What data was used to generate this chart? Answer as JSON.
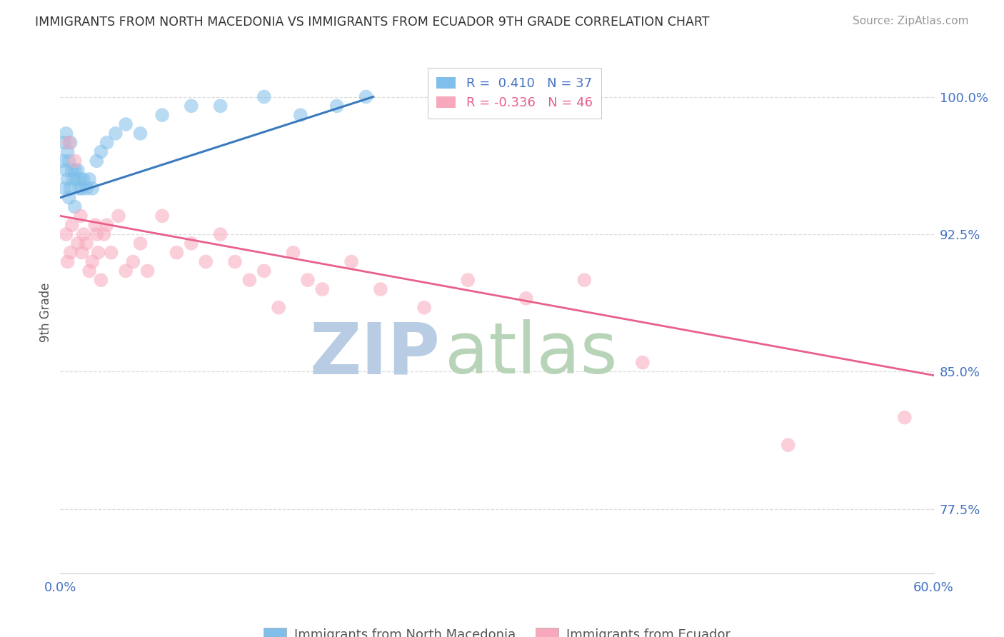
{
  "title": "IMMIGRANTS FROM NORTH MACEDONIA VS IMMIGRANTS FROM ECUADOR 9TH GRADE CORRELATION CHART",
  "source": "Source: ZipAtlas.com",
  "ylabel": "9th Grade",
  "yticks": [
    77.5,
    85.0,
    92.5,
    100.0
  ],
  "ytick_labels": [
    "77.5%",
    "85.0%",
    "92.5%",
    "100.0%"
  ],
  "xlim": [
    0.0,
    60.0
  ],
  "ylim": [
    74.0,
    102.5
  ],
  "color_blue": "#7fbfea",
  "color_pink": "#f8a8bc",
  "color_blue_line": "#3a7abd",
  "color_pink_line": "#e8608a",
  "color_blue_text": "#4472c4",
  "watermark_zip": "ZIP",
  "watermark_atlas": "atlas",
  "watermark_color_zip": "#b8cfe0",
  "watermark_color_atlas": "#c0d8c0",
  "label1": "Immigrants from North Macedonia",
  "label2": "Immigrants from Ecuador",
  "legend_text1": "R =  0.410   N = 37",
  "legend_text2": "R = -0.336   N = 46",
  "north_macedonia_x": [
    0.2,
    0.3,
    0.3,
    0.4,
    0.4,
    0.5,
    0.5,
    0.6,
    0.6,
    0.7,
    0.7,
    0.8,
    0.9,
    1.0,
    1.0,
    1.1,
    1.2,
    1.3,
    1.4,
    1.5,
    1.6,
    1.8,
    2.0,
    2.2,
    2.5,
    2.8,
    3.2,
    3.8,
    4.5,
    5.5,
    7.0,
    9.0,
    11.0,
    14.0,
    16.5,
    19.0,
    21.0
  ],
  "north_macedonia_y": [
    96.5,
    95.0,
    97.5,
    96.0,
    98.0,
    95.5,
    97.0,
    94.5,
    96.5,
    95.0,
    97.5,
    96.0,
    95.5,
    94.0,
    96.0,
    95.5,
    96.0,
    95.0,
    95.5,
    95.0,
    95.5,
    95.0,
    95.5,
    95.0,
    96.5,
    97.0,
    97.5,
    98.0,
    98.5,
    98.0,
    99.0,
    99.5,
    99.5,
    100.0,
    99.0,
    99.5,
    100.0
  ],
  "ecuador_x": [
    0.4,
    0.5,
    0.6,
    0.7,
    0.8,
    1.0,
    1.2,
    1.4,
    1.5,
    1.6,
    1.8,
    2.0,
    2.2,
    2.4,
    2.5,
    2.6,
    2.8,
    3.0,
    3.2,
    3.5,
    4.0,
    4.5,
    5.0,
    5.5,
    6.0,
    7.0,
    8.0,
    9.0,
    10.0,
    11.0,
    12.0,
    13.0,
    14.0,
    15.0,
    16.0,
    17.0,
    18.0,
    20.0,
    22.0,
    25.0,
    28.0,
    32.0,
    36.0,
    40.0,
    50.0,
    58.0
  ],
  "ecuador_y": [
    92.5,
    91.0,
    97.5,
    91.5,
    93.0,
    96.5,
    92.0,
    93.5,
    91.5,
    92.5,
    92.0,
    90.5,
    91.0,
    93.0,
    92.5,
    91.5,
    90.0,
    92.5,
    93.0,
    91.5,
    93.5,
    90.5,
    91.0,
    92.0,
    90.5,
    93.5,
    91.5,
    92.0,
    91.0,
    92.5,
    91.0,
    90.0,
    90.5,
    88.5,
    91.5,
    90.0,
    89.5,
    91.0,
    89.5,
    88.5,
    90.0,
    89.0,
    90.0,
    85.5,
    81.0,
    82.5
  ],
  "nm_trendline_x": [
    0.0,
    21.5
  ],
  "nm_trendline_y": [
    94.5,
    100.0
  ],
  "ec_trendline_x": [
    0.0,
    60.0
  ],
  "ec_trendline_y": [
    93.5,
    84.8
  ]
}
